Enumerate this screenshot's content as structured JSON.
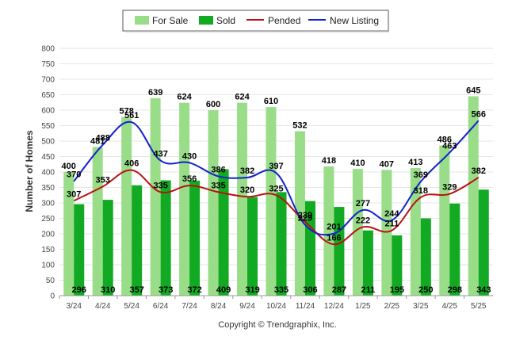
{
  "chart_data": {
    "type": "bar",
    "categories": [
      "3/24",
      "4/24",
      "5/24",
      "6/24",
      "7/24",
      "8/24",
      "9/24",
      "10/24",
      "11/24",
      "12/24",
      "1/25",
      "2/25",
      "3/25",
      "4/25",
      "5/25"
    ],
    "series": [
      {
        "name": "For Sale",
        "kind": "bar",
        "color": "#99dd88",
        "values": [
          400,
          481,
          578,
          639,
          624,
          600,
          624,
          610,
          532,
          418,
          410,
          407,
          413,
          486,
          645
        ]
      },
      {
        "name": "Sold",
        "kind": "bar",
        "color": "#11aa22",
        "values": [
          296,
          310,
          357,
          373,
          372,
          409,
          319,
          335,
          306,
          287,
          211,
          195,
          250,
          298,
          343
        ]
      },
      {
        "name": "Pended",
        "kind": "line",
        "color": "#bb1111",
        "values": [
          307,
          353,
          406,
          335,
          356,
          335,
          320,
          325,
          239,
          166,
          222,
          211,
          318,
          329,
          382
        ]
      },
      {
        "name": "New Listing",
        "kind": "line",
        "color": "#1122cc",
        "values": [
          370,
          488,
          561,
          437,
          430,
          386,
          382,
          397,
          229,
          201,
          277,
          244,
          369,
          463,
          566
        ]
      }
    ],
    "ylabel": "Number of Homes",
    "ylim": [
      0,
      800
    ],
    "yticks": [
      "0",
      "50",
      "100",
      "150",
      "200",
      "250",
      "300",
      "350",
      "400",
      "450",
      "500",
      "550",
      "600",
      "650",
      "700",
      "750",
      "800"
    ],
    "grid": true,
    "legend_position": "top-center",
    "footer": "Copyright © Trendgraphix, Inc."
  }
}
